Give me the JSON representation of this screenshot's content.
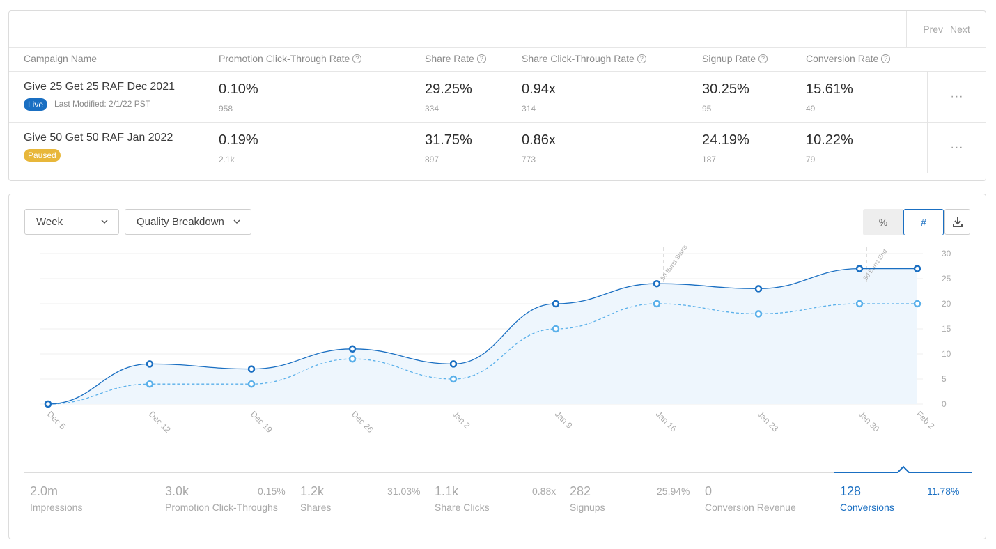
{
  "pager": {
    "prev": "Prev",
    "next": "Next"
  },
  "table": {
    "headers": [
      "Campaign Name",
      "Promotion Click-Through Rate",
      "Share Rate",
      "Share Click-Through Rate",
      "Signup Rate",
      "Conversion Rate"
    ],
    "rows": [
      {
        "name": "Give 25 Get 25 RAF Dec 2021",
        "status": "Live",
        "modified": "Last Modified: 2/1/22 PST",
        "metrics": [
          {
            "value": "0.10%",
            "sub": "958"
          },
          {
            "value": "29.25%",
            "sub": "334"
          },
          {
            "value": "0.94x",
            "sub": "314"
          },
          {
            "value": "30.25%",
            "sub": "95"
          },
          {
            "value": "15.61%",
            "sub": "49"
          }
        ],
        "more": "···"
      },
      {
        "name": "Give 50 Get 50 RAF Jan 2022",
        "status": "Paused",
        "modified": "",
        "metrics": [
          {
            "value": "0.19%",
            "sub": "2.1k"
          },
          {
            "value": "31.75%",
            "sub": "897"
          },
          {
            "value": "0.86x",
            "sub": "773"
          },
          {
            "value": "24.19%",
            "sub": "187"
          },
          {
            "value": "10.22%",
            "sub": "79"
          }
        ],
        "more": "···"
      }
    ]
  },
  "controls": {
    "period": "Week",
    "breakdown": "Quality Breakdown",
    "toggle_pct": "%",
    "toggle_num": "#",
    "active_toggle": "#"
  },
  "colors": {
    "accent": "#1a6fc2",
    "light_series": "#5ab0ea",
    "area_fill": "#eef6fd"
  },
  "chart_data": {
    "type": "line",
    "x": [
      "Dec 5",
      "Dec 12",
      "Dec 19",
      "Dec 26",
      "Jan 2",
      "Jan 9",
      "Jan 16",
      "Jan 23",
      "Jan 30",
      "Feb 2"
    ],
    "series": [
      {
        "values": [
          0,
          8,
          7,
          11,
          8,
          20,
          24,
          23,
          27,
          27
        ],
        "style": "solid",
        "color": "#1a6fc2"
      },
      {
        "values": [
          0,
          4,
          4,
          9,
          5,
          15,
          20,
          18,
          20,
          20
        ],
        "style": "dashed",
        "color": "#5ab0ea"
      }
    ],
    "yticks": [
      0,
      5,
      10,
      15,
      20,
      25,
      30
    ],
    "ylim": [
      0,
      30
    ],
    "y_axis_side": "right",
    "grid": true,
    "annotations": [
      {
        "x": "Jan 16",
        "label": "50 Burst Starts"
      },
      {
        "x": "Jan 30",
        "label": "50 Burst End"
      }
    ]
  },
  "stats": [
    {
      "value": "2.0m",
      "label": "Impressions",
      "pct": ""
    },
    {
      "value": "3.0k",
      "label": "Promotion Click-Throughs",
      "pct": "0.15%"
    },
    {
      "value": "1.2k",
      "label": "Shares",
      "pct": "31.03%"
    },
    {
      "value": "1.1k",
      "label": "Share Clicks",
      "pct": "0.88x"
    },
    {
      "value": "282",
      "label": "Signups",
      "pct": "25.94%"
    },
    {
      "value": "0",
      "label": "Conversion Revenue",
      "pct": ""
    },
    {
      "value": "128",
      "label": "Conversions",
      "pct": "11.78%",
      "active": true
    }
  ]
}
